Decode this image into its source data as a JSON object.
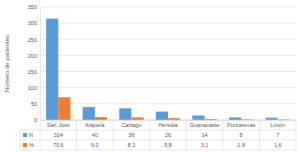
{
  "chart_data": {
    "type": "bar",
    "y_label": "Número de pacientes",
    "categories": [
      "San José",
      "Alajuela",
      "Cartago",
      "Heredia",
      "Guanacaste",
      "Puntarenas",
      "Limón"
    ],
    "series": [
      {
        "name": "N",
        "color": "#5b9bd5",
        "values": [
          314,
          40,
          36,
          26,
          14,
          8,
          7
        ]
      },
      {
        "name": "%",
        "color": "#ed7d31",
        "values": [
          70.6,
          9.0,
          8.1,
          5.8,
          3.1,
          1.8,
          1.6
        ],
        "value_labels": [
          "70,6",
          "9,0",
          "8,1",
          "5,8",
          "3,1",
          "1,8",
          "1,6"
        ]
      }
    ],
    "ylim": [
      0,
      350
    ],
    "yticks": [
      0,
      50,
      100,
      150,
      200,
      250,
      300,
      350
    ],
    "grid": true,
    "data_labels": true
  }
}
